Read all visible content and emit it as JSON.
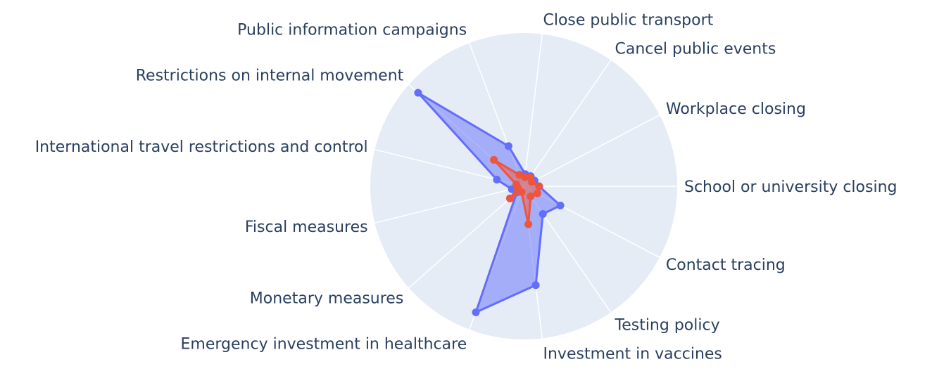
{
  "chart_data": {
    "type": "radar",
    "axes": [
      "School or university closing",
      "Workplace closing",
      "Cancel public events",
      "Close public transport",
      "Public information campaigns",
      "Restrictions on internal movement",
      "International travel restrictions and control",
      "Fiscal measures",
      "Monetary measures",
      "Emergency investment in healthcare",
      "Investment in vaccines",
      "Testing policy",
      "Contact tracing"
    ],
    "r_range": [
      0,
      1
    ],
    "grid": true,
    "legend": "none",
    "series": [
      {
        "color": "#636efa",
        "fill_color": "rgba(99,110,250,0.5)",
        "values": [
          0.1,
          0.08,
          0.08,
          0.08,
          0.28,
          0.92,
          0.18,
          0.08,
          0.06,
          0.88,
          0.65,
          0.22,
          0.27
        ]
      },
      {
        "color": "#ef553b",
        "fill_color": "rgba(239,85,59,0.5)",
        "values": [
          0.1,
          0.06,
          0.07,
          0.06,
          0.08,
          0.26,
          0.05,
          0.04,
          0.12,
          0.04,
          0.25,
          0.08,
          0.1
        ]
      }
    ]
  }
}
